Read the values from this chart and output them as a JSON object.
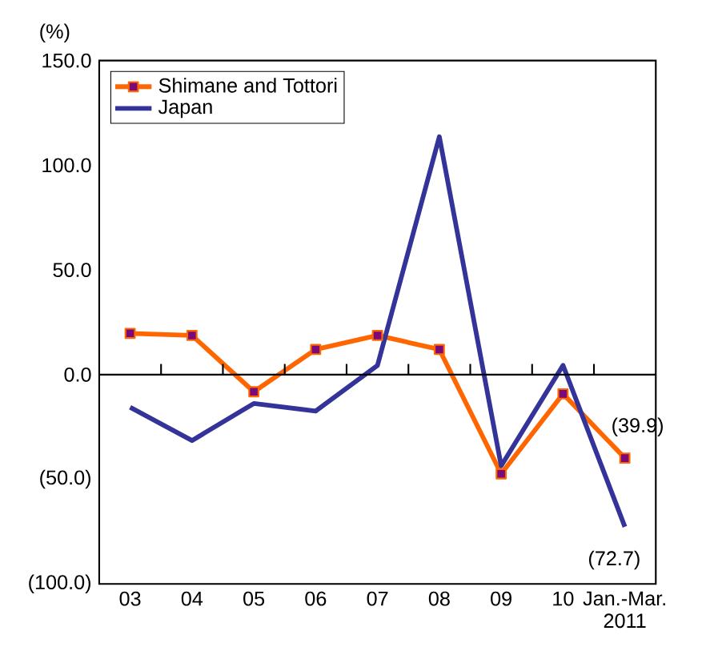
{
  "chart_data": {
    "type": "line",
    "ylabel": "(%)",
    "categories": [
      "03",
      "04",
      "05",
      "06",
      "07",
      "08",
      "09",
      "10",
      "Jan.-Mar. 2011"
    ],
    "series": [
      {
        "name": "Shimane and Tottori",
        "color": "#ff6600",
        "marker": "square",
        "values": [
          19.7,
          18.7,
          -8.2,
          12.0,
          18.7,
          12.0,
          -47.4,
          -9.2,
          -39.9
        ]
      },
      {
        "name": "Japan",
        "color": "#333399",
        "marker": "none",
        "values": [
          -15.6,
          -31.5,
          -13.8,
          -17.4,
          4.4,
          113.6,
          -43.6,
          4.4,
          -72.7
        ]
      }
    ],
    "ylim": [
      -100,
      150
    ],
    "yticks": [
      {
        "value": -100,
        "label": "(100.0)"
      },
      {
        "value": -50,
        "label": "(50.0)"
      },
      {
        "value": 0,
        "label": "0.0"
      },
      {
        "value": 50,
        "label": "50.0"
      },
      {
        "value": 100,
        "label": "100.0"
      },
      {
        "value": 150,
        "label": "150.0"
      }
    ],
    "legend": "top left",
    "grid": false,
    "ref_lines": [
      {
        "axis": "y",
        "value": 0,
        "color": "#000000"
      }
    ],
    "annotations": [
      {
        "text": "(39.9)",
        "x": "Jan.-Mar. 2011",
        "y": -39.9
      },
      {
        "text": "(72.7)",
        "x": "Jan.-Mar. 2011",
        "y": -72.7
      }
    ]
  }
}
